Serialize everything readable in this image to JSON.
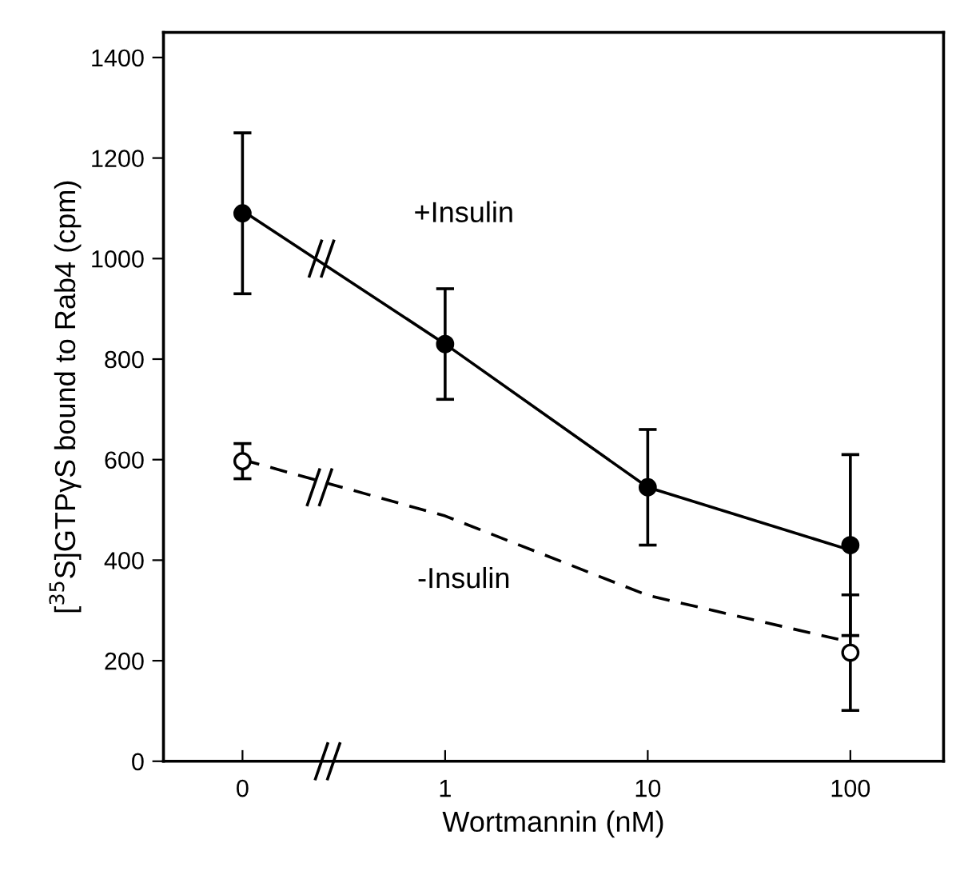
{
  "chart_data": {
    "type": "scatter",
    "xlabel": "Wortmannin (nM)",
    "ylabel": "[$^{35}$S]GTPγS bound to Rab4 (cpm)",
    "categories": [
      "0",
      "1",
      "10",
      "100"
    ],
    "series": [
      {
        "type": "line",
        "color": "#000000",
        "line_style": "solid",
        "marker": "none",
        "values": [
          1095,
          830,
          545,
          420
        ]
      },
      {
        "type": "line",
        "color": "#000000",
        "line_style": "dashed",
        "marker": "none",
        "values": [
          600,
          488,
          330,
          237
        ]
      },
      {
        "color": "#000000",
        "marker": "circle",
        "values": [
          1090,
          830,
          545,
          430
        ],
        "errors": [
          160,
          110,
          115,
          180
        ]
      },
      {
        "color": "#ffffff",
        "marker": "circle",
        "values": [
          597,
          null,
          null,
          216
        ],
        "errors": [
          35,
          null,
          null,
          115
        ]
      }
    ],
    "ylim": [
      0,
      1450
    ],
    "yticks": [
      0,
      200,
      400,
      600,
      800,
      1000,
      1200,
      1400
    ],
    "grid": false,
    "legend": false,
    "annotations": [
      "+Insulin",
      "-Insulin"
    ]
  }
}
